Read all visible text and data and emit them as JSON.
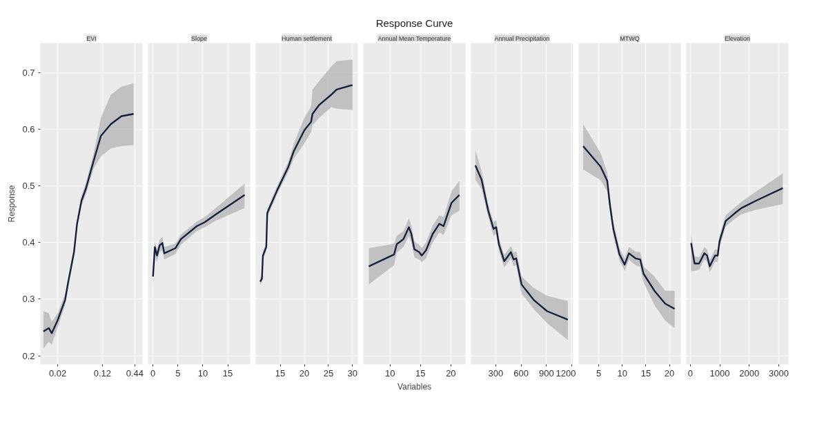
{
  "chart_data": [
    {
      "type": "line",
      "subtitle": "EVI",
      "ylabel": "Response",
      "log": "x",
      "grid": true,
      "ylim": [
        0.185,
        0.752
      ],
      "yticks": [
        0.2,
        0.3,
        0.4,
        0.5,
        0.6,
        0.7
      ],
      "xlim": [
        0.01,
        0.6
      ],
      "xticks": [
        0.02,
        0.12,
        0.44
      ],
      "series": [
        {
          "color": "#14213d",
          "x": [
            0.0113,
            0.014,
            0.0158,
            0.02,
            0.027,
            0.0304,
            0.0385,
            0.0435,
            0.052,
            0.062,
            0.084,
            0.113,
            0.169,
            0.258,
            0.42
          ],
          "values": [
            0.243,
            0.249,
            0.24,
            0.263,
            0.299,
            0.329,
            0.383,
            0.433,
            0.474,
            0.495,
            0.543,
            0.588,
            0.609,
            0.623,
            0.627
          ],
          "lower": [
            0.213,
            0.225,
            0.22,
            0.25,
            0.29,
            0.32,
            0.375,
            0.425,
            0.465,
            0.485,
            0.53,
            0.552,
            0.566,
            0.57,
            0.572
          ],
          "upper": [
            0.279,
            0.275,
            0.26,
            0.275,
            0.31,
            0.338,
            0.39,
            0.44,
            0.483,
            0.505,
            0.556,
            0.62,
            0.661,
            0.675,
            0.681
          ]
        }
      ]
    },
    {
      "type": "line",
      "subtitle": "Slope",
      "tick_labels": "x",
      "grid": true,
      "ylim": [
        0.185,
        0.752
      ],
      "yticks": [
        0.2,
        0.3,
        0.4,
        0.5,
        0.6,
        0.7
      ],
      "xlim": [
        -1,
        19.5
      ],
      "xticks": [
        0,
        5,
        10,
        15
      ],
      "series": [
        {
          "color": "#14213d",
          "x": [
            0,
            0.37,
            0.8,
            1.33,
            1.87,
            2.27,
            4.5,
            5.6,
            8.8,
            10.4,
            12.5,
            18.4
          ],
          "values": [
            0.34,
            0.392,
            0.377,
            0.395,
            0.399,
            0.381,
            0.39,
            0.406,
            0.429,
            0.436,
            0.449,
            0.484
          ],
          "lower": [
            0.325,
            0.38,
            0.365,
            0.383,
            0.386,
            0.37,
            0.38,
            0.396,
            0.42,
            0.427,
            0.438,
            0.461
          ],
          "upper": [
            0.352,
            0.402,
            0.388,
            0.405,
            0.41,
            0.392,
            0.398,
            0.414,
            0.437,
            0.445,
            0.46,
            0.504
          ]
        }
      ]
    },
    {
      "type": "line",
      "subtitle": "Human settlement",
      "tick_labels": "x",
      "grid": true,
      "ylim": [
        0.185,
        0.752
      ],
      "yticks": [
        0.2,
        0.3,
        0.4,
        0.5,
        0.6,
        0.7
      ],
      "xlim": [
        9.9,
        31.1
      ],
      "xticks": [
        15,
        20,
        25,
        30
      ],
      "series": [
        {
          "color": "#14213d",
          "x": [
            10.83,
            11.2,
            11.4,
            12.1,
            12.3,
            14.4,
            16.7,
            17.8,
            20,
            21.4,
            21.7,
            23.1,
            25.6,
            26.7,
            30
          ],
          "values": [
            0.331,
            0.336,
            0.377,
            0.392,
            0.452,
            0.493,
            0.534,
            0.561,
            0.598,
            0.613,
            0.627,
            0.643,
            0.661,
            0.67,
            0.678
          ],
          "lower": [
            0.325,
            0.33,
            0.37,
            0.385,
            0.445,
            0.486,
            0.525,
            0.548,
            0.575,
            0.595,
            0.607,
            0.62,
            0.639,
            0.636,
            0.634
          ],
          "upper": [
            0.337,
            0.342,
            0.384,
            0.399,
            0.459,
            0.5,
            0.543,
            0.574,
            0.62,
            0.64,
            0.67,
            0.685,
            0.711,
            0.72,
            0.723
          ]
        }
      ]
    },
    {
      "type": "line",
      "title": "Response Curve",
      "subtitle": "Annual Mean Temperature",
      "xlabel": "Variables",
      "tick_labels": "x",
      "grid": true,
      "ylim": [
        0.185,
        0.752
      ],
      "yticks": [
        0.2,
        0.3,
        0.4,
        0.5,
        0.6,
        0.7
      ],
      "xlim": [
        5.6,
        22.4
      ],
      "xticks": [
        10,
        15,
        20
      ],
      "series": [
        {
          "color": "#14213d",
          "x": [
            6.5,
            10.66,
            11.1,
            12.2,
            13.1,
            13.5,
            14,
            14.8,
            15.2,
            15.9,
            17,
            18.1,
            18.8,
            20.1,
            21.4
          ],
          "values": [
            0.358,
            0.379,
            0.397,
            0.406,
            0.427,
            0.415,
            0.388,
            0.383,
            0.377,
            0.386,
            0.415,
            0.433,
            0.429,
            0.47,
            0.484
          ],
          "lower": [
            0.326,
            0.36,
            0.382,
            0.392,
            0.412,
            0.4,
            0.374,
            0.37,
            0.365,
            0.372,
            0.4,
            0.418,
            0.413,
            0.448,
            0.456
          ],
          "upper": [
            0.39,
            0.398,
            0.412,
            0.42,
            0.443,
            0.43,
            0.402,
            0.396,
            0.39,
            0.4,
            0.43,
            0.448,
            0.445,
            0.49,
            0.509
          ]
        }
      ]
    },
    {
      "type": "line",
      "subtitle": "Annual Precipitation",
      "tick_labels": "x",
      "grid": true,
      "ylim": [
        0.185,
        0.752
      ],
      "yticks": [
        0.2,
        0.3,
        0.4,
        0.5,
        0.6,
        0.7
      ],
      "xlim": [
        8,
        1216
      ],
      "xticks": [
        300,
        600,
        900,
        1200
      ],
      "series": [
        {
          "color": "#14213d",
          "x": [
            60,
            133,
            212,
            275,
            306,
            338,
            401,
            480,
            512,
            543,
            606,
            748,
            906,
            1153
          ],
          "values": [
            0.536,
            0.511,
            0.456,
            0.424,
            0.427,
            0.397,
            0.367,
            0.383,
            0.37,
            0.372,
            0.326,
            0.299,
            0.279,
            0.264
          ],
          "lower": [
            0.511,
            0.495,
            0.445,
            0.412,
            0.415,
            0.386,
            0.356,
            0.372,
            0.358,
            0.36,
            0.31,
            0.283,
            0.258,
            0.228
          ],
          "upper": [
            0.563,
            0.527,
            0.467,
            0.436,
            0.44,
            0.408,
            0.378,
            0.394,
            0.382,
            0.385,
            0.34,
            0.32,
            0.306,
            0.297
          ]
        }
      ]
    },
    {
      "type": "line",
      "subtitle": "MTWQ",
      "tick_labels": "x",
      "grid": true,
      "ylim": [
        0.185,
        0.752
      ],
      "yticks": [
        0.2,
        0.3,
        0.4,
        0.5,
        0.6,
        0.7
      ],
      "xlim": [
        0.74,
        22.4
      ],
      "xticks": [
        5,
        10,
        15,
        20
      ],
      "series": [
        {
          "color": "#14213d",
          "x": [
            1.7,
            5.4,
            6.8,
            7.4,
            8.1,
            9.4,
            10.5,
            11.4,
            12.8,
            13.8,
            14.5,
            16.8,
            19.1,
            21.1
          ],
          "values": [
            0.57,
            0.534,
            0.509,
            0.465,
            0.424,
            0.379,
            0.361,
            0.381,
            0.372,
            0.37,
            0.345,
            0.315,
            0.292,
            0.283
          ],
          "lower": [
            0.529,
            0.51,
            0.49,
            0.452,
            0.412,
            0.368,
            0.35,
            0.37,
            0.36,
            0.357,
            0.33,
            0.29,
            0.262,
            0.249
          ],
          "upper": [
            0.609,
            0.558,
            0.524,
            0.478,
            0.436,
            0.39,
            0.372,
            0.392,
            0.384,
            0.383,
            0.358,
            0.34,
            0.315,
            0.315
          ]
        }
      ]
    },
    {
      "type": "line",
      "subtitle": "Elevation",
      "tick_labels": "x",
      "grid": true,
      "ylim": [
        0.185,
        0.752
      ],
      "yticks": [
        0.2,
        0.3,
        0.4,
        0.5,
        0.6,
        0.7
      ],
      "xlim": [
        -136,
        3326
      ],
      "xticks": [
        0,
        1000,
        2000,
        3000
      ],
      "series": [
        {
          "color": "#14213d",
          "x": [
            27,
            144,
            297,
            477,
            568,
            658,
            838,
            928,
            991,
            1198,
            1514,
            1739,
            2234,
            3135
          ],
          "values": [
            0.399,
            0.363,
            0.363,
            0.381,
            0.377,
            0.358,
            0.377,
            0.377,
            0.402,
            0.438,
            0.452,
            0.461,
            0.474,
            0.496
          ],
          "lower": [
            0.349,
            0.35,
            0.352,
            0.37,
            0.366,
            0.347,
            0.366,
            0.366,
            0.392,
            0.428,
            0.442,
            0.45,
            0.458,
            0.468
          ],
          "upper": [
            0.415,
            0.376,
            0.374,
            0.392,
            0.388,
            0.369,
            0.388,
            0.388,
            0.412,
            0.448,
            0.462,
            0.472,
            0.49,
            0.522
          ]
        }
      ]
    }
  ]
}
